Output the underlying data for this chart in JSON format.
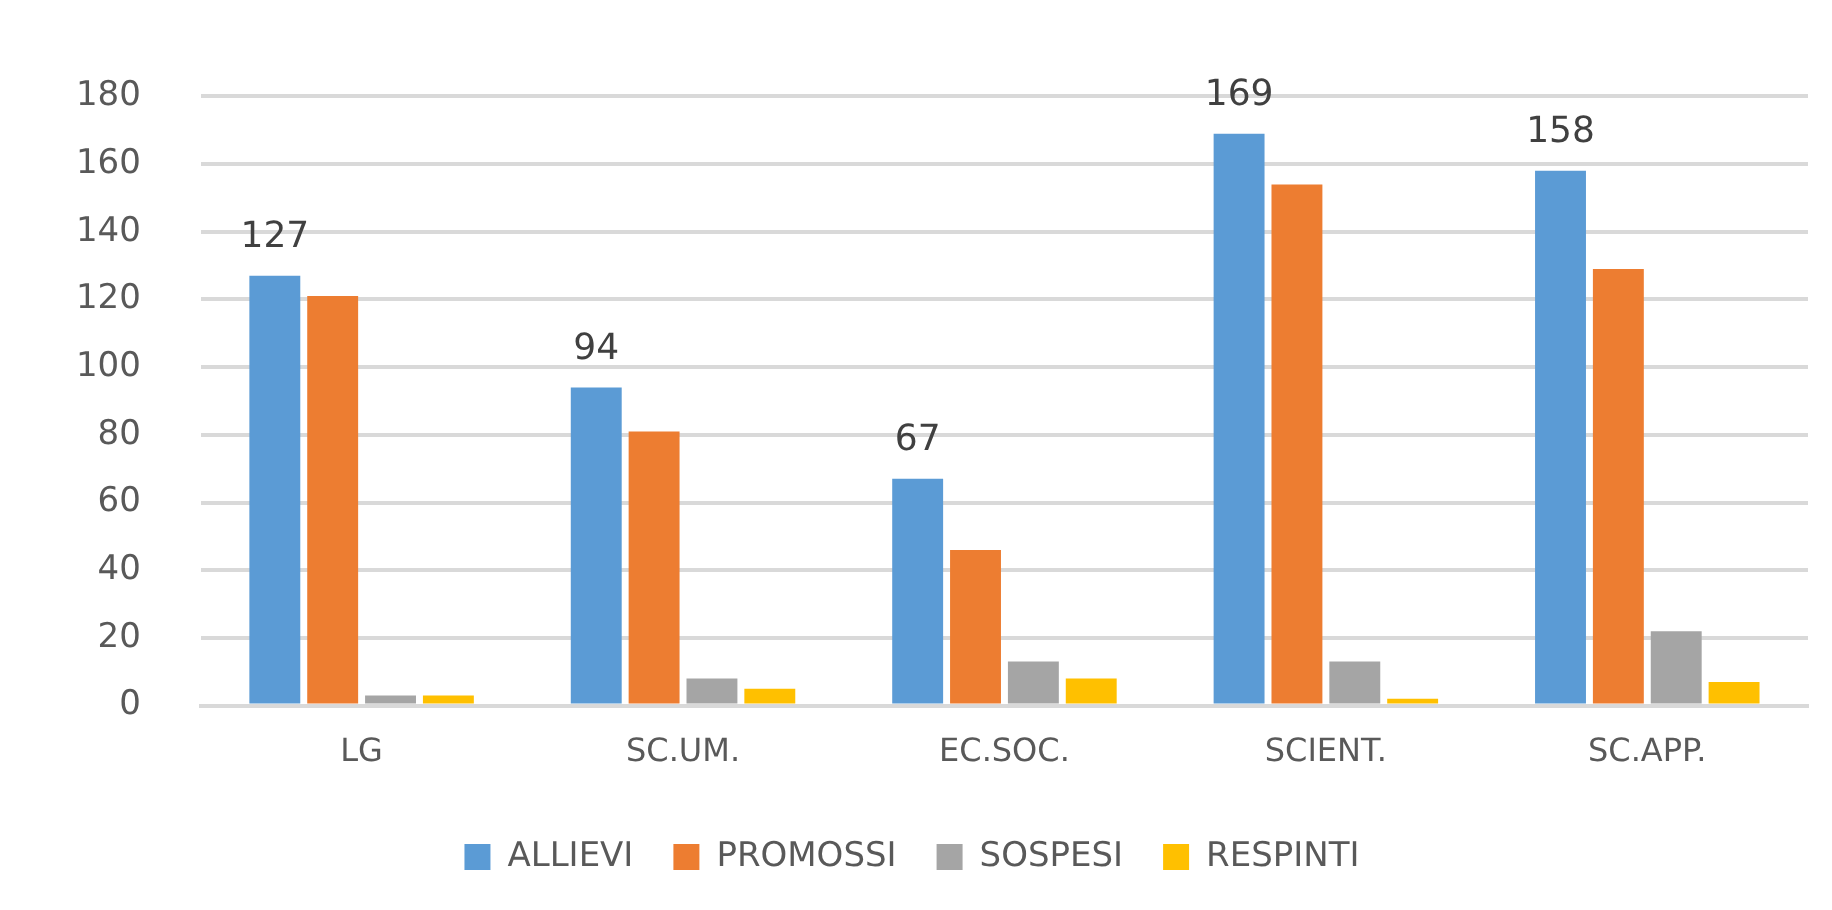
{
  "chart_data": {
    "type": "bar",
    "categories": [
      "LG",
      "SC.UM.",
      "EC.SOC.",
      "SCIENT.",
      "SC.APP."
    ],
    "series": [
      {
        "name": "ALLIEVI",
        "color": "#5b9bd5",
        "values": [
          127,
          94,
          67,
          169,
          158
        ],
        "value_labels": [
          "127",
          "94",
          "67",
          "169",
          "158"
        ]
      },
      {
        "name": "PROMOSSI",
        "color": "#ed7d31",
        "values": [
          121,
          81,
          46,
          154,
          129
        ]
      },
      {
        "name": "SOSPESI",
        "color": "#a5a5a5",
        "values": [
          3,
          8,
          13,
          13,
          22
        ]
      },
      {
        "name": "RESPINTI",
        "color": "#ffc000",
        "values": [
          3,
          5,
          8,
          2,
          7
        ]
      }
    ],
    "ylim": [
      0,
      180
    ],
    "yticks": [
      0,
      20,
      40,
      60,
      80,
      100,
      120,
      140,
      160,
      180
    ],
    "grid": "y",
    "legend": "bottom"
  }
}
